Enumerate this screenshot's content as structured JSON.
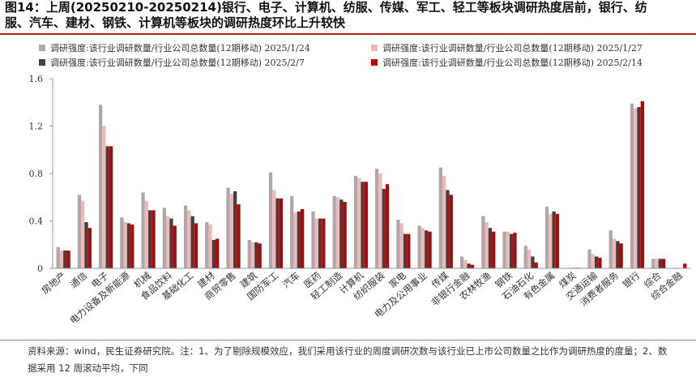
{
  "title": {
    "line1": "图14：上周(20250210-20250214)银行、电子、计算机、纺服、传媒、军工、轻工等板块调研热度居前，银行、纺",
    "line2": "服、汽车、建材、钢铁、计算机等板块的调研热度环比上升较快"
  },
  "footer": {
    "line1": "资料来源：wind，民生证券研究院。注：1、为了剔除规模效应，我们采用该行业的周度调研次数与该行业已上市公司数量之比作为调研热度的度量；2、数",
    "line2": "据采用 12 周滚动平均，下同"
  },
  "colors": {
    "accent_rule": "#b51c22",
    "series": [
      "#aaaaaa",
      "#f2b8b8",
      "#404040",
      "#c00000"
    ]
  },
  "chart_data": {
    "type": "bar",
    "ylim": [
      0,
      1.6
    ],
    "yticks": [
      "0",
      "0.4",
      "0.8",
      "1.2",
      "1.6"
    ],
    "grid": false,
    "legend_position": "top",
    "categories": [
      "房地产",
      "通信",
      "电子",
      "电力设备及新能源",
      "机械",
      "食品饮料",
      "基础化工",
      "建材",
      "商贸零售",
      "建筑",
      "国防军工",
      "汽车",
      "医药",
      "轻工制造",
      "计算机",
      "纺织服装",
      "家电",
      "电力及公用事业",
      "传媒",
      "非银行金融",
      "农林牧渔",
      "钢铁",
      "石油石化",
      "有色金属",
      "煤炭",
      "交通运输",
      "消费者服务",
      "银行",
      "综合",
      "综合金融"
    ],
    "series": [
      {
        "name": "调研强度:该行业调研数量/行业公司总数量(12期移动) 2025/1/24",
        "values": [
          0.18,
          0.62,
          1.38,
          0.43,
          0.64,
          0.51,
          0.53,
          0.39,
          0.68,
          0.24,
          0.81,
          0.61,
          0.48,
          0.61,
          0.78,
          0.84,
          0.41,
          0.36,
          0.85,
          0.1,
          0.44,
          0.31,
          0.19,
          0.52,
          0.005,
          0.16,
          0.32,
          1.39,
          0.08,
          0.0
        ]
      },
      {
        "name": "调研强度:该行业调研数量/行业公司总数量(12期移动) 2025/1/27",
        "values": [
          0.15,
          0.57,
          1.2,
          0.39,
          0.57,
          0.44,
          0.49,
          0.37,
          0.63,
          0.22,
          0.66,
          0.47,
          0.42,
          0.6,
          0.76,
          0.8,
          0.38,
          0.34,
          0.78,
          0.07,
          0.39,
          0.31,
          0.16,
          0.46,
          0.005,
          0.12,
          0.25,
          1.35,
          0.08,
          0.0
        ]
      },
      {
        "name": "调研强度:该行业调研数量/行业公司总数量(12期移动) 2025/2/7",
        "values": [
          0.15,
          0.39,
          1.03,
          0.38,
          0.49,
          0.42,
          0.44,
          0.24,
          0.65,
          0.22,
          0.59,
          0.48,
          0.42,
          0.58,
          0.73,
          0.67,
          0.29,
          0.32,
          0.66,
          0.04,
          0.34,
          0.29,
          0.1,
          0.48,
          0.005,
          0.1,
          0.23,
          1.36,
          0.08,
          0.0
        ]
      },
      {
        "name": "调研强度:该行业调研数量/行业公司总数量(12期移动) 2025/2/14",
        "values": [
          0.15,
          0.34,
          1.03,
          0.37,
          0.49,
          0.36,
          0.38,
          0.25,
          0.54,
          0.21,
          0.59,
          0.5,
          0.42,
          0.56,
          0.73,
          0.71,
          0.29,
          0.31,
          0.62,
          0.03,
          0.31,
          0.3,
          0.05,
          0.46,
          0.005,
          0.09,
          0.21,
          1.41,
          0.08,
          0.04
        ]
      }
    ]
  }
}
